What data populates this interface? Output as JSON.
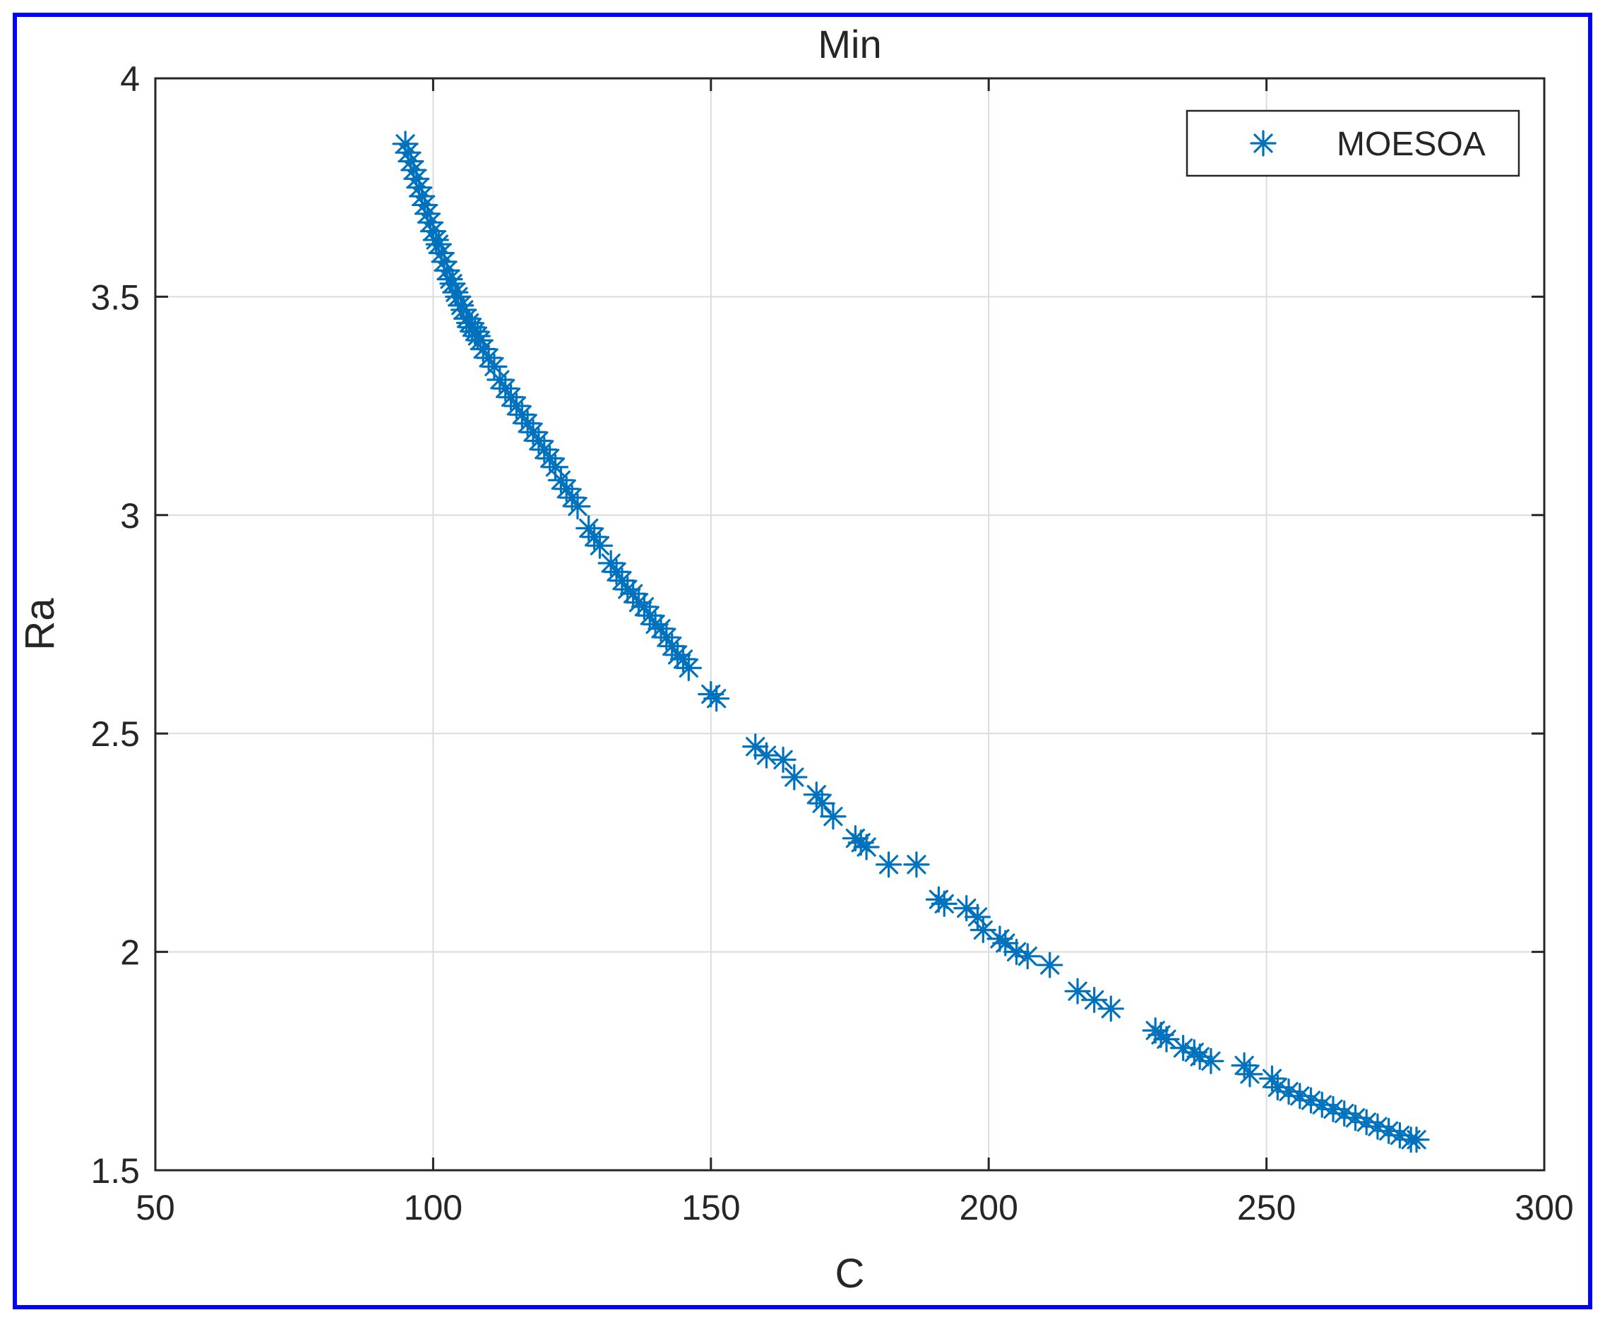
{
  "chart_data": {
    "type": "scatter",
    "title": "Min",
    "xlabel": "C",
    "ylabel": "Ra",
    "xlim": [
      50,
      300
    ],
    "ylim": [
      1.5,
      4
    ],
    "xticks": [
      50,
      100,
      150,
      200,
      250,
      300
    ],
    "yticks": [
      1.5,
      2,
      2.5,
      3,
      3.5,
      4
    ],
    "xtick_labels": [
      "50",
      "100",
      "150",
      "200",
      "250",
      "300"
    ],
    "ytick_labels": [
      "1.5",
      "2",
      "2.5",
      "3",
      "3.5",
      "4"
    ],
    "grid": true,
    "legend_position": "top-right",
    "marker": "asterisk",
    "colors": {
      "series": "#0072BD",
      "frame": "#0000FF",
      "grid": "#DCDCDC",
      "axes": "#262626"
    },
    "series": [
      {
        "name": "MOESOA",
        "x": [
          95,
          95.5,
          96,
          96.5,
          97,
          97.5,
          98,
          98.5,
          99,
          99.5,
          100,
          100.5,
          101,
          101.5,
          102,
          102.5,
          103,
          103.5,
          104,
          104.5,
          105,
          105.5,
          106,
          106.5,
          107,
          107.5,
          108,
          108.5,
          109,
          110,
          111,
          112,
          113,
          114,
          115,
          116,
          117,
          118,
          119,
          120,
          121,
          122,
          123,
          124,
          125,
          126,
          128,
          129,
          130,
          132,
          133,
          134,
          135,
          136,
          137,
          138,
          139,
          140,
          141,
          142,
          143,
          144,
          145,
          146,
          150,
          151,
          158,
          160,
          163,
          165,
          169,
          170,
          172,
          176,
          177,
          178,
          182,
          187,
          191,
          192,
          196,
          198,
          199,
          202,
          203,
          205,
          207,
          211,
          216,
          219,
          222,
          230,
          231,
          232,
          235,
          237,
          238,
          240,
          246,
          247,
          251,
          252,
          254,
          256,
          258,
          260,
          262,
          264,
          266,
          268,
          270,
          272,
          274,
          276,
          277
        ],
        "y": [
          3.85,
          3.83,
          3.81,
          3.79,
          3.77,
          3.75,
          3.73,
          3.71,
          3.69,
          3.67,
          3.65,
          3.63,
          3.62,
          3.6,
          3.58,
          3.56,
          3.54,
          3.53,
          3.51,
          3.5,
          3.48,
          3.47,
          3.45,
          3.44,
          3.43,
          3.42,
          3.41,
          3.4,
          3.38,
          3.36,
          3.34,
          3.31,
          3.29,
          3.27,
          3.25,
          3.23,
          3.21,
          3.19,
          3.17,
          3.15,
          3.13,
          3.11,
          3.08,
          3.06,
          3.04,
          3.02,
          2.97,
          2.95,
          2.93,
          2.89,
          2.87,
          2.85,
          2.83,
          2.82,
          2.8,
          2.79,
          2.77,
          2.75,
          2.74,
          2.72,
          2.7,
          2.68,
          2.67,
          2.65,
          2.59,
          2.58,
          2.47,
          2.45,
          2.44,
          2.4,
          2.36,
          2.34,
          2.31,
          2.26,
          2.25,
          2.24,
          2.2,
          2.2,
          2.12,
          2.11,
          2.1,
          2.08,
          2.05,
          2.03,
          2.02,
          2,
          1.99,
          1.97,
          1.91,
          1.89,
          1.87,
          1.82,
          1.81,
          1.8,
          1.78,
          1.77,
          1.76,
          1.75,
          1.74,
          1.72,
          1.71,
          1.69,
          1.68,
          1.67,
          1.66,
          1.65,
          1.64,
          1.63,
          1.62,
          1.61,
          1.6,
          1.59,
          1.58,
          1.57,
          1.57
        ]
      }
    ]
  }
}
